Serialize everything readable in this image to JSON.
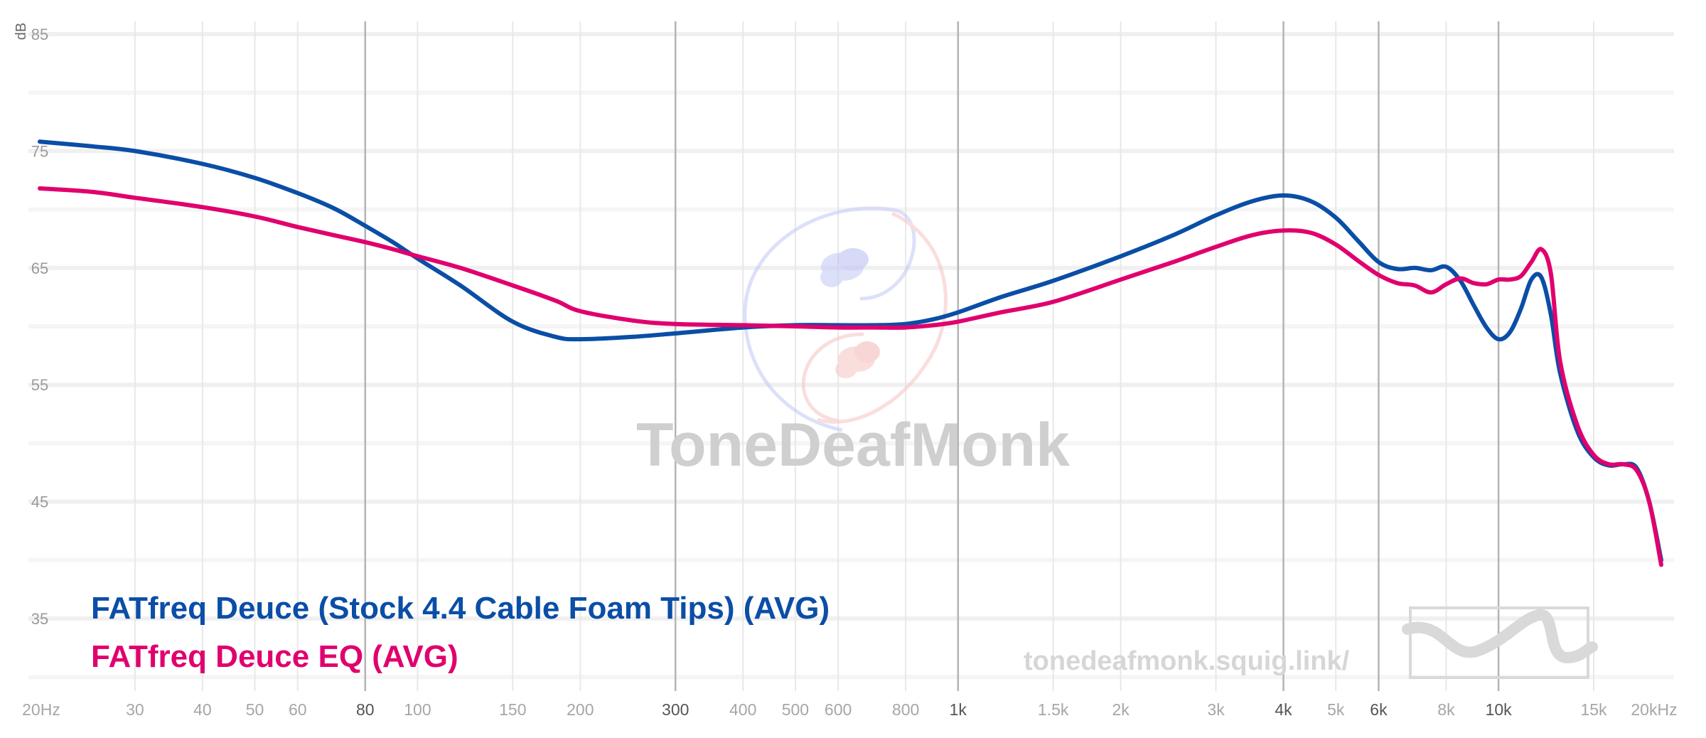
{
  "chart_data": {
    "type": "line",
    "ylabel": "dB",
    "xscale": "log",
    "xlim": [
      20,
      20000
    ],
    "ylim": [
      29,
      87
    ],
    "y_ticks": [
      85,
      75,
      65,
      55,
      45,
      35
    ],
    "x_ticks": [
      {
        "f": 20,
        "label": "20Hz",
        "major": false
      },
      {
        "f": 30,
        "label": "30",
        "major": false
      },
      {
        "f": 40,
        "label": "40",
        "major": false
      },
      {
        "f": 50,
        "label": "50",
        "major": false
      },
      {
        "f": 60,
        "label": "60",
        "major": false
      },
      {
        "f": 80,
        "label": "80",
        "major": true
      },
      {
        "f": 100,
        "label": "100",
        "major": false
      },
      {
        "f": 150,
        "label": "150",
        "major": false
      },
      {
        "f": 200,
        "label": "200",
        "major": false
      },
      {
        "f": 300,
        "label": "300",
        "major": true
      },
      {
        "f": 400,
        "label": "400",
        "major": false
      },
      {
        "f": 500,
        "label": "500",
        "major": false
      },
      {
        "f": 600,
        "label": "600",
        "major": false
      },
      {
        "f": 800,
        "label": "800",
        "major": false
      },
      {
        "f": 1000,
        "label": "1k",
        "major": true
      },
      {
        "f": 1500,
        "label": "1.5k",
        "major": false
      },
      {
        "f": 2000,
        "label": "2k",
        "major": false
      },
      {
        "f": 3000,
        "label": "3k",
        "major": false
      },
      {
        "f": 4000,
        "label": "4k",
        "major": true
      },
      {
        "f": 5000,
        "label": "5k",
        "major": false
      },
      {
        "f": 6000,
        "label": "6k",
        "major": true
      },
      {
        "f": 8000,
        "label": "8k",
        "major": false
      },
      {
        "f": 10000,
        "label": "10k",
        "major": true
      },
      {
        "f": 15000,
        "label": "15k",
        "major": false
      },
      {
        "f": 20000,
        "label": "20kHz",
        "major": false
      }
    ],
    "series": [
      {
        "name": "FATfreq Deuce (Stock 4.4 Cable Foam Tips) (AVG)",
        "color": "#0a4ea6",
        "x": [
          20,
          25,
          30,
          40,
          50,
          60,
          70,
          80,
          90,
          100,
          120,
          150,
          180,
          200,
          250,
          300,
          400,
          500,
          600,
          700,
          800,
          900,
          1000,
          1200,
          1500,
          2000,
          2500,
          3000,
          3500,
          4000,
          4500,
          5000,
          5500,
          6000,
          6500,
          7000,
          7500,
          8000,
          8500,
          9000,
          9500,
          10000,
          10500,
          11000,
          11500,
          12000,
          12500,
          13000,
          14000,
          15000,
          16000,
          17000,
          18000,
          19000,
          20000
        ],
        "y": [
          75.8,
          75.4,
          75.0,
          73.9,
          72.7,
          71.4,
          70.1,
          68.6,
          67.2,
          65.8,
          63.5,
          60.4,
          59.1,
          58.9,
          59.1,
          59.4,
          59.9,
          60.1,
          60.1,
          60.1,
          60.2,
          60.6,
          61.2,
          62.5,
          63.9,
          66.0,
          67.8,
          69.5,
          70.7,
          71.2,
          70.7,
          69.3,
          67.3,
          65.5,
          64.9,
          65.0,
          64.8,
          65.1,
          63.9,
          61.8,
          59.9,
          58.9,
          59.5,
          61.5,
          64.0,
          64.2,
          61.0,
          56.0,
          51.0,
          48.8,
          48.1,
          48.2,
          47.9,
          45.0,
          40.0
        ]
      },
      {
        "name": "FATfreq Deuce EQ (AVG)",
        "color": "#e0006e",
        "x": [
          20,
          25,
          30,
          40,
          50,
          60,
          70,
          80,
          90,
          100,
          120,
          150,
          180,
          200,
          250,
          300,
          400,
          500,
          600,
          700,
          800,
          900,
          1000,
          1200,
          1500,
          2000,
          2500,
          3000,
          3500,
          4000,
          4500,
          5000,
          5500,
          6000,
          6500,
          7000,
          7500,
          8000,
          8500,
          9000,
          9500,
          10000,
          10500,
          11000,
          11500,
          12000,
          12500,
          13000,
          14000,
          15000,
          16000,
          17000,
          18000,
          19000,
          20000
        ],
        "y": [
          71.8,
          71.5,
          71.0,
          70.2,
          69.4,
          68.5,
          67.8,
          67.2,
          66.6,
          66.0,
          65.0,
          63.5,
          62.2,
          61.3,
          60.5,
          60.2,
          60.1,
          60.0,
          59.9,
          59.9,
          59.9,
          60.1,
          60.4,
          61.2,
          62.1,
          64.0,
          65.5,
          66.8,
          67.8,
          68.2,
          68.0,
          67.0,
          65.6,
          64.4,
          63.7,
          63.5,
          62.9,
          63.6,
          64.1,
          63.7,
          63.6,
          64.0,
          64.0,
          64.3,
          65.5,
          66.6,
          64.5,
          57.0,
          51.5,
          49.0,
          48.2,
          48.2,
          47.7,
          45.0,
          39.6
        ]
      }
    ]
  },
  "watermark": {
    "brand": "ToneDeafMonk",
    "url": "tonedeafmonk.squig.link/"
  }
}
